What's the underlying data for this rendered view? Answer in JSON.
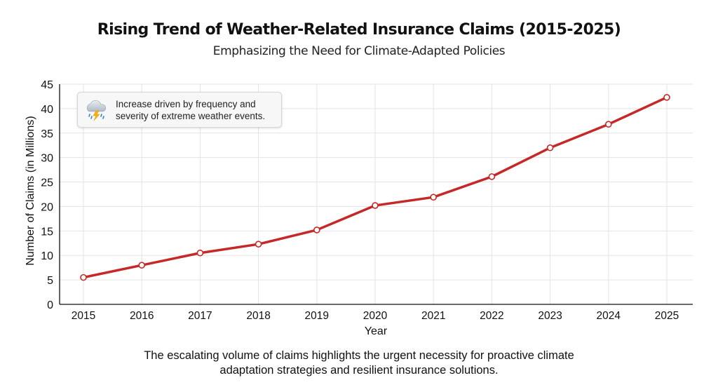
{
  "chart_data": {
    "type": "line",
    "title": "Rising Trend of Weather-Related Insurance Claims (2015-2025)",
    "subtitle": "Emphasizing the Need for Climate-Adapted Policies",
    "xlabel": "Year",
    "ylabel": "Number of Claims (in Millions)",
    "x": [
      "2015",
      "2016",
      "2017",
      "2018",
      "2019",
      "2020",
      "2021",
      "2022",
      "2023",
      "2024",
      "2025"
    ],
    "series": [
      {
        "name": "Weather-Related Insurance Claims",
        "values": [
          5.5,
          8.0,
          10.5,
          12.3,
          15.2,
          20.2,
          21.9,
          26.1,
          32.0,
          36.8,
          42.3
        ],
        "color": "#c62828"
      }
    ],
    "ylim": [
      0,
      45
    ],
    "yticks": [
      "0",
      "5",
      "10",
      "15",
      "20",
      "25",
      "30",
      "35",
      "40",
      "45"
    ],
    "grid": true,
    "legend": "none",
    "annotation": {
      "icon": "storm-cloud-lightning-icon",
      "text_line1": "Increase driven by frequency and",
      "text_line2": "severity of extreme weather events.",
      "placement": "top-left"
    },
    "caption_line1": "The escalating volume of claims highlights the urgent necessity for proactive climate",
    "caption_line2": "adaptation strategies and resilient insurance solutions."
  }
}
